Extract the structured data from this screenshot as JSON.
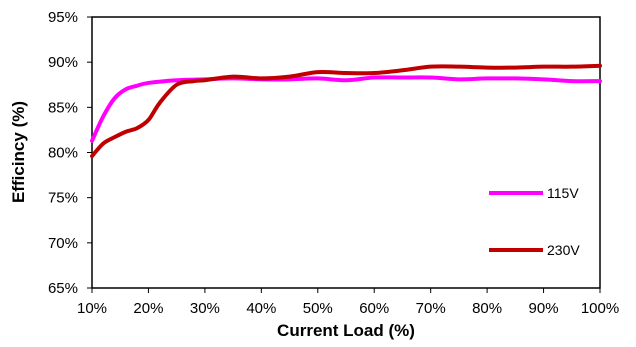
{
  "chart_data": {
    "type": "line",
    "xlabel": "Current Load (%)",
    "ylabel": "Efficincy (%)",
    "x_ticks": [
      "10%",
      "20%",
      "30%",
      "40%",
      "50%",
      "60%",
      "70%",
      "80%",
      "90%",
      "100%"
    ],
    "y_ticks": [
      "65%",
      "70%",
      "75%",
      "80%",
      "85%",
      "90%",
      "95%"
    ],
    "xlim": [
      10,
      100
    ],
    "ylim": [
      65,
      95
    ],
    "grid": false,
    "legend": "inside-right",
    "series": [
      {
        "name": "115V",
        "color": "#ff00ff",
        "x": [
          10,
          12,
          14,
          16,
          18,
          20,
          25,
          30,
          35,
          40,
          45,
          50,
          55,
          60,
          65,
          70,
          75,
          80,
          85,
          90,
          95,
          100
        ],
        "y": [
          81.3,
          84.0,
          86.0,
          87.0,
          87.4,
          87.7,
          88.0,
          88.1,
          88.2,
          88.1,
          88.1,
          88.2,
          88.0,
          88.3,
          88.3,
          88.3,
          88.1,
          88.2,
          88.2,
          88.1,
          87.9,
          87.9
        ]
      },
      {
        "name": "230V",
        "color": "#c00000",
        "x": [
          10,
          12,
          14,
          16,
          18,
          20,
          22,
          25,
          28,
          30,
          35,
          40,
          45,
          50,
          55,
          60,
          65,
          70,
          75,
          80,
          85,
          90,
          95,
          100
        ],
        "y": [
          79.6,
          81.0,
          81.7,
          82.3,
          82.7,
          83.6,
          85.5,
          87.5,
          87.9,
          88.0,
          88.4,
          88.2,
          88.4,
          88.9,
          88.8,
          88.8,
          89.1,
          89.5,
          89.5,
          89.4,
          89.4,
          89.5,
          89.5,
          89.6
        ]
      }
    ]
  }
}
